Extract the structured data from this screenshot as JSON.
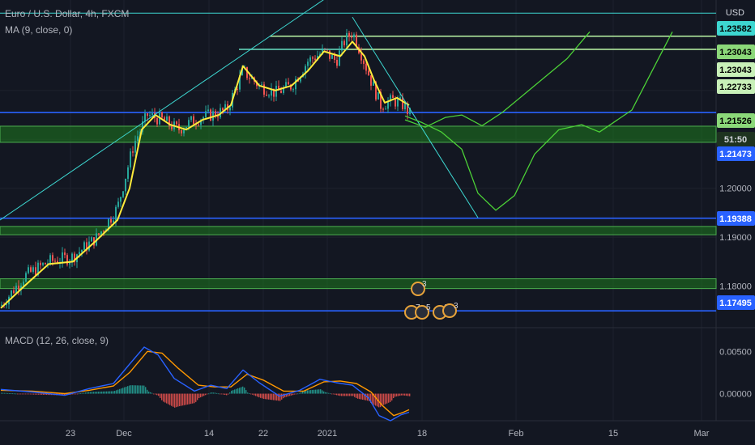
{
  "header": {
    "title": "Euro / U.S. Dollar, 4h, FXCM",
    "ma_label": "MA (9, close, 0)",
    "macd_label": "MACD (12, 26, close, 9)",
    "currency": "USD"
  },
  "colors": {
    "background": "#131722",
    "candle_up": "#26a69a",
    "candle_down": "#ef5350",
    "ma": "#ffeb3b",
    "trendline": "#3dd6d0",
    "level_blue": "#2962ff",
    "level_green": "#4caf50",
    "zone_fill": "#1e7a1e",
    "projection": "#4cd137",
    "macd_line": "#2962ff",
    "signal_line": "#ff9800"
  },
  "chart_data": {
    "type": "candlestick",
    "symbol": "EURUSD",
    "timeframe": "4h",
    "source": "FXCM",
    "x_ticks": [
      "23",
      "Dec",
      "14",
      "22",
      "2021",
      "18",
      "Feb",
      "15",
      "Mar"
    ],
    "ylim": [
      1.1715,
      1.2385
    ],
    "y_ticks": [
      1.18,
      1.19,
      1.2,
      1.21,
      1.22
    ],
    "price_tags": [
      {
        "value": 1.23582,
        "label": "1.23582",
        "style": "line-cyan"
      },
      {
        "value": 1.23043,
        "label": "1.23043",
        "style": "green"
      },
      {
        "value": 1.23043,
        "label": "1.23043",
        "style": "green-light"
      },
      {
        "value": 1.22733,
        "label": "1.22733",
        "style": "green-light"
      },
      {
        "value": 1.21526,
        "label": "1.21526",
        "style": "green"
      },
      {
        "value": 1.2132,
        "label": "51:50",
        "style": "dark"
      },
      {
        "value": 1.21473,
        "label": "1.21473",
        "style": "blue"
      },
      {
        "value": 1.19388,
        "label": "1.19388",
        "style": "blue"
      },
      {
        "value": 1.17495,
        "label": "1.17495",
        "style": "blue"
      }
    ],
    "horizontal_levels": [
      {
        "value": 1.23582,
        "kind": "cyan"
      },
      {
        "value": 1.2311,
        "kind": "green"
      },
      {
        "value": 1.2284,
        "kind": "green"
      },
      {
        "value": 1.2155,
        "kind": "blue"
      },
      {
        "value": 1.19388,
        "kind": "blue"
      },
      {
        "value": 1.17495,
        "kind": "blue"
      }
    ],
    "zones": [
      {
        "from": 1.2094,
        "to": 1.2127
      },
      {
        "from": 1.1905,
        "to": 1.1922
      },
      {
        "from": 1.1795,
        "to": 1.1815
      }
    ],
    "close_path": [
      [
        1,
        1.176
      ],
      [
        30,
        1.182
      ],
      [
        60,
        1.185
      ],
      [
        90,
        1.186
      ],
      [
        120,
        1.19
      ],
      [
        145,
        1.196
      ],
      [
        165,
        1.209
      ],
      [
        182,
        1.215
      ],
      [
        200,
        1.214
      ],
      [
        220,
        1.212
      ],
      [
        240,
        1.214
      ],
      [
        260,
        1.215
      ],
      [
        280,
        1.216
      ],
      [
        300,
        1.224
      ],
      [
        320,
        1.221
      ],
      [
        340,
        1.2195
      ],
      [
        360,
        1.221
      ],
      [
        380,
        1.226
      ],
      [
        400,
        1.228
      ],
      [
        415,
        1.226
      ],
      [
        425,
        1.23
      ],
      [
        435,
        1.232
      ],
      [
        445,
        1.228
      ],
      [
        458,
        1.222
      ],
      [
        470,
        1.217
      ],
      [
        485,
        1.218
      ],
      [
        498,
        1.217
      ],
      [
        507,
        1.215
      ]
    ],
    "ma_path": [
      [
        1,
        1.1755
      ],
      [
        30,
        1.18
      ],
      [
        60,
        1.1845
      ],
      [
        90,
        1.185
      ],
      [
        120,
        1.1895
      ],
      [
        145,
        1.1935
      ],
      [
        160,
        1.2
      ],
      [
        175,
        1.212
      ],
      [
        192,
        1.215
      ],
      [
        210,
        1.213
      ],
      [
        230,
        1.212
      ],
      [
        250,
        1.214
      ],
      [
        270,
        1.215
      ],
      [
        285,
        1.217
      ],
      [
        300,
        1.225
      ],
      [
        320,
        1.221
      ],
      [
        340,
        1.22
      ],
      [
        360,
        1.221
      ],
      [
        380,
        1.224
      ],
      [
        400,
        1.228
      ],
      [
        420,
        1.227
      ],
      [
        435,
        1.23
      ],
      [
        450,
        1.227
      ],
      [
        462,
        1.222
      ],
      [
        475,
        1.2175
      ],
      [
        490,
        1.2185
      ],
      [
        505,
        1.217
      ]
    ],
    "trendlines": [
      {
        "from": [
          0,
          1.1935
        ],
        "to": [
          430,
          1.242
        ]
      },
      {
        "from": [
          295,
          1.2284
        ],
        "to": [
          430,
          1.2284
        ]
      },
      {
        "from": [
          435,
          1.235
        ],
        "to": [
          590,
          1.194
        ]
      }
    ],
    "projections": [
      [
        [
          500,
          1.214
        ],
        [
          525,
          1.2125
        ],
        [
          550,
          1.2145
        ],
        [
          570,
          1.215
        ],
        [
          595,
          1.2128
        ],
        [
          620,
          1.2155
        ],
        [
          660,
          1.221
        ],
        [
          700,
          1.2265
        ],
        [
          728,
          1.232
        ]
      ],
      [
        [
          500,
          1.2148
        ],
        [
          520,
          1.2135
        ],
        [
          545,
          1.2115
        ],
        [
          570,
          1.208
        ],
        [
          590,
          1.199
        ],
        [
          612,
          1.1955
        ],
        [
          635,
          1.1985
        ],
        [
          660,
          1.207
        ],
        [
          690,
          1.212
        ],
        [
          718,
          1.213
        ],
        [
          740,
          1.2115
        ],
        [
          780,
          1.216
        ],
        [
          805,
          1.224
        ],
        [
          830,
          1.232
        ]
      ]
    ],
    "macd": {
      "label": "MACD (12, 26, close, 9)",
      "ylim": [
        -0.0032,
        0.0078
      ],
      "y_ticks": [
        0.005,
        0.0
      ],
      "y_tick_labels": [
        "0.00500",
        "0.00000"
      ],
      "macd_line": [
        [
          1,
          0.0005
        ],
        [
          40,
          0.0002
        ],
        [
          80,
          -0.0002
        ],
        [
          110,
          0.0006
        ],
        [
          140,
          0.0012
        ],
        [
          160,
          0.0035
        ],
        [
          178,
          0.0055
        ],
        [
          195,
          0.0046
        ],
        [
          215,
          0.0018
        ],
        [
          240,
          0.0003
        ],
        [
          260,
          0.001
        ],
        [
          280,
          0.0006
        ],
        [
          300,
          0.0028
        ],
        [
          320,
          0.0013
        ],
        [
          345,
          -0.0003
        ],
        [
          370,
          0.0004
        ],
        [
          395,
          0.0017
        ],
        [
          415,
          0.0013
        ],
        [
          435,
          0.001
        ],
        [
          455,
          -0.0005
        ],
        [
          468,
          -0.0026
        ],
        [
          482,
          -0.0032
        ],
        [
          495,
          -0.0025
        ],
        [
          505,
          -0.0022
        ]
      ],
      "signal_line": [
        [
          1,
          0.0004
        ],
        [
          40,
          0.0003
        ],
        [
          80,
          0.0
        ],
        [
          110,
          0.0004
        ],
        [
          140,
          0.0009
        ],
        [
          160,
          0.0025
        ],
        [
          182,
          0.005
        ],
        [
          200,
          0.0048
        ],
        [
          220,
          0.003
        ],
        [
          245,
          0.001
        ],
        [
          265,
          0.0008
        ],
        [
          285,
          0.0008
        ],
        [
          305,
          0.0023
        ],
        [
          325,
          0.0016
        ],
        [
          350,
          0.0003
        ],
        [
          375,
          0.0003
        ],
        [
          400,
          0.0014
        ],
        [
          420,
          0.0015
        ],
        [
          440,
          0.0012
        ],
        [
          458,
          0.0002
        ],
        [
          472,
          -0.0014
        ],
        [
          486,
          -0.0026
        ],
        [
          498,
          -0.0022
        ],
        [
          505,
          -0.0019
        ]
      ]
    },
    "event_badges": [
      {
        "label": "3"
      },
      {
        "label": "7"
      },
      {
        "label": "5"
      },
      {
        "label": "2"
      },
      {
        "label": "3"
      }
    ]
  }
}
